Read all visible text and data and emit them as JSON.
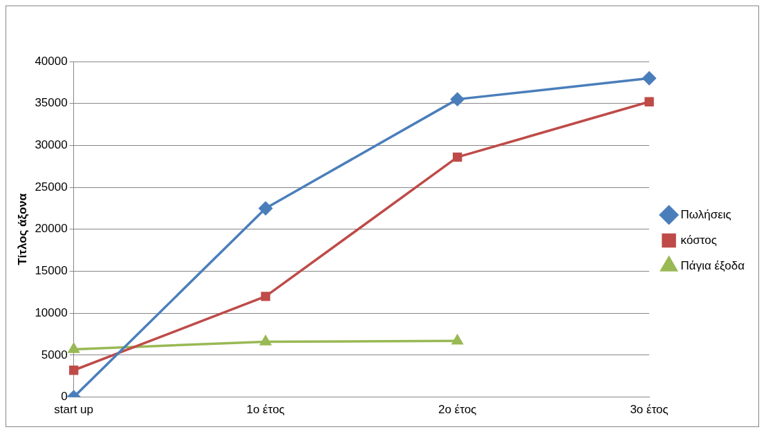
{
  "chart_data": {
    "type": "line",
    "ylabel": "Τίτλος άξονα",
    "categories": [
      "start up",
      "1ο έτος",
      "2ο έτος",
      "3ο έτος"
    ],
    "series": [
      {
        "name": "Πωλήσεις",
        "color": "#4a7ebb",
        "marker": "diamond",
        "values": [
          0,
          22500,
          35500,
          38000
        ]
      },
      {
        "name": "κόστος",
        "color": "#be4b48",
        "marker": "square",
        "values": [
          3200,
          12000,
          28600,
          35200
        ]
      },
      {
        "name": "Πάγια έξοδα",
        "color": "#98b954",
        "marker": "triangle",
        "values": [
          5700,
          6600,
          6700,
          null
        ]
      }
    ],
    "ylim": [
      0,
      40000
    ],
    "yticks": [
      0,
      5000,
      10000,
      15000,
      20000,
      25000,
      30000,
      35000,
      40000
    ],
    "grid": "y",
    "legend": "right",
    "line_style": "solid"
  }
}
